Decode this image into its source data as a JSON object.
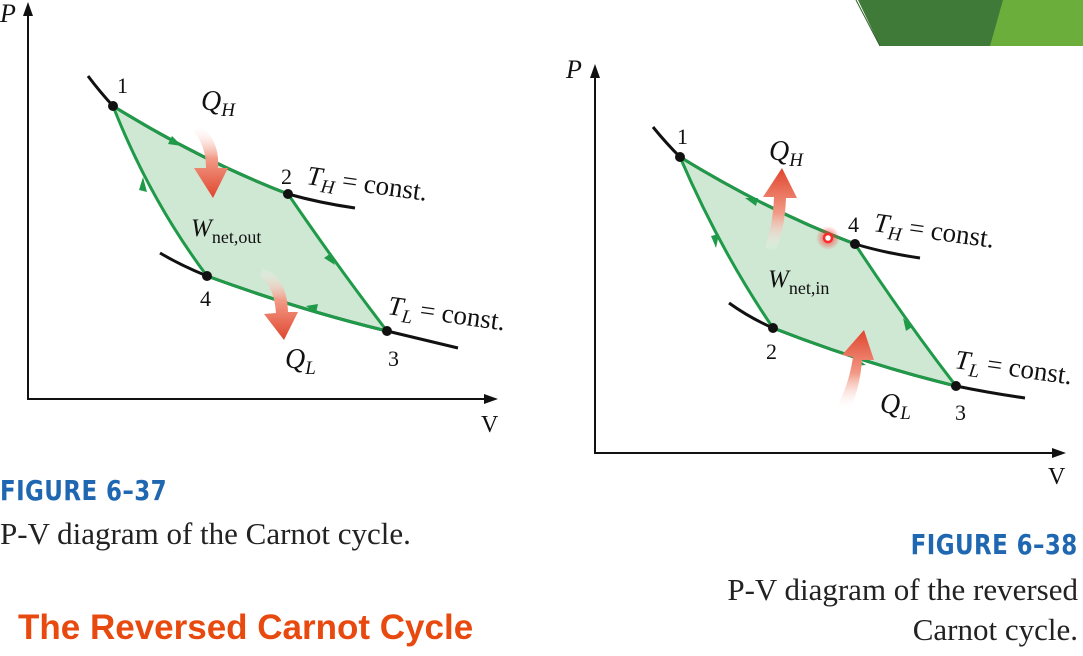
{
  "colors": {
    "cycle_line": "#1f9a48",
    "cycle_fill": "#cfe8d4",
    "isotherm": "#111111",
    "heat_arrow": "#e8553a",
    "fig_title": "#1f67b1",
    "heading": "#e8490f",
    "corner_green_dark": "#3f7a38",
    "corner_green_light": "#6cae3c",
    "laser_dot": "#ff2a2a"
  },
  "figure_37": {
    "title": "FIGURE 6–37",
    "caption": "P-V diagram of the Carnot cycle.",
    "axis_p": "P",
    "axis_v": "V",
    "points": [
      "1",
      "2",
      "3",
      "4"
    ],
    "q_h": "Q",
    "q_h_sub": "H",
    "q_l": "Q",
    "q_l_sub": "L",
    "work": "W",
    "work_sub": "net,out",
    "th_lhs": "T",
    "th_sub": "H",
    "th_rhs": " = const.",
    "tl_lhs": "T",
    "tl_sub": "L",
    "tl_rhs": " = const."
  },
  "figure_38": {
    "title": "FIGURE 6–38",
    "caption_line1": "P-V diagram of the reversed",
    "caption_line2": "Carnot cycle.",
    "axis_p": "P",
    "axis_v": "V",
    "points": [
      "1",
      "2",
      "3",
      "4"
    ],
    "q_h": "Q",
    "q_h_sub": "H",
    "q_l": "Q",
    "q_l_sub": "L",
    "work": "W",
    "work_sub": "net,in",
    "th_lhs": "T",
    "th_sub": "H",
    "th_rhs": " = const.",
    "tl_lhs": "T",
    "tl_sub": "L",
    "tl_rhs": " = const."
  },
  "heading": "The Reversed Carnot Cycle"
}
